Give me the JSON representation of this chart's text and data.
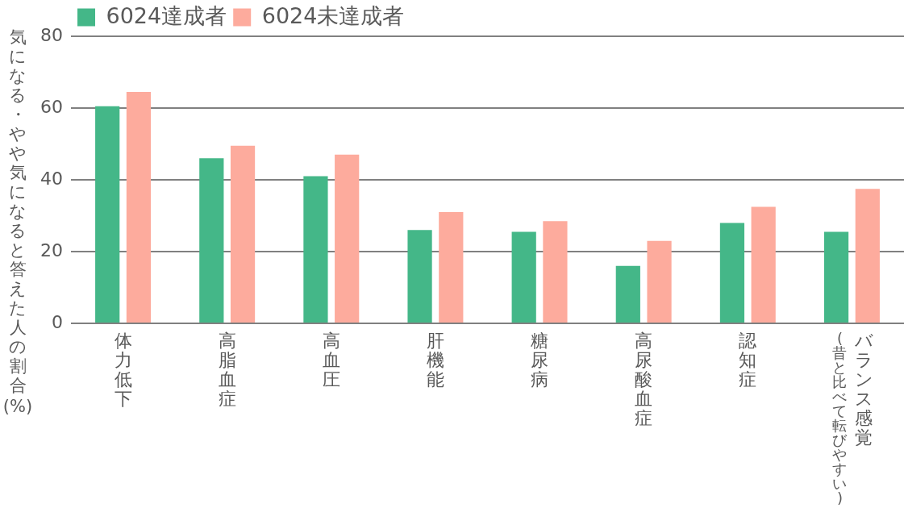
{
  "chart_data": {
    "type": "bar",
    "ylabel": "気になる・やや気になると答えた人の割合(%)",
    "categories": [
      "体力低下",
      "高脂血症",
      "高血圧",
      "肝機能",
      "糖尿病",
      "高尿酸血症",
      "認知症",
      "バランス感覚\n(昔と比べて転びやすい)"
    ],
    "series": [
      {
        "name": "6024達成者",
        "color": "#44b788",
        "values": [
          60.5,
          46,
          41,
          26,
          25.5,
          16,
          28,
          25.5
        ]
      },
      {
        "name": "6024未達成者",
        "color": "#fdab9d",
        "values": [
          64.5,
          49.5,
          47,
          31,
          28.5,
          23,
          32.5,
          37.5
        ]
      }
    ],
    "ylim": [
      0,
      80
    ],
    "yticks": [
      0,
      20,
      40,
      60,
      80
    ],
    "grid": "y",
    "legend": "top left"
  }
}
